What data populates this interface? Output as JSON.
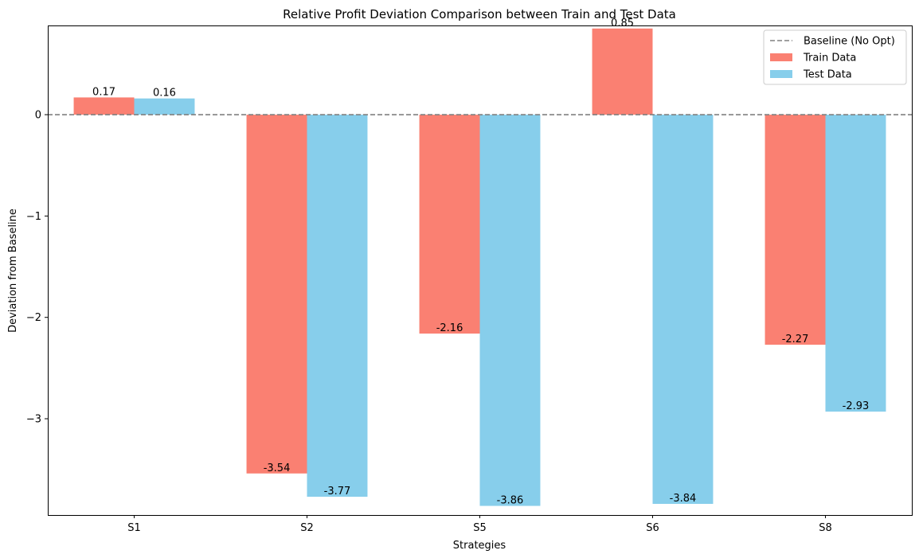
{
  "chart_data": {
    "type": "bar",
    "title": "Relative Profit Deviation Comparison between Train and Test Data",
    "xlabel": "Strategies",
    "ylabel": "Deviation from Baseline",
    "categories": [
      "S1",
      "S2",
      "S5",
      "S6",
      "S8"
    ],
    "series": [
      {
        "name": "Train Data",
        "color": "#fa8072",
        "values": [
          0.17,
          -3.54,
          -2.16,
          0.85,
          -2.27
        ],
        "labels": [
          "0.17",
          "-3.54",
          "-2.16",
          "0.85",
          "-2.27"
        ]
      },
      {
        "name": "Test Data",
        "color": "#87ceeb",
        "values": [
          0.16,
          -3.77,
          -3.86,
          -3.84,
          -2.93
        ],
        "labels": [
          "0.16",
          "-3.77",
          "-3.86",
          "-3.84",
          "-2.93"
        ]
      }
    ],
    "baseline": {
      "name": "Baseline (No Opt)",
      "value": 0,
      "color": "#808080",
      "style": "dashed"
    },
    "ylim": [
      -3.95,
      0.88
    ],
    "yticks": [
      0,
      -1,
      -2,
      -3
    ],
    "ytick_labels": [
      "0",
      "−1",
      "−2",
      "−3"
    ],
    "grid": false,
    "legend": "top-right"
  }
}
